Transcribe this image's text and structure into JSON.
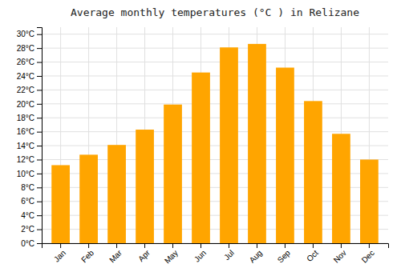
{
  "chart_data": {
    "type": "bar",
    "title": "Average monthly temperatures (°C ) in Relizane",
    "categories": [
      "Jan",
      "Feb",
      "Mar",
      "Apr",
      "May",
      "Jun",
      "Jul",
      "Aug",
      "Sep",
      "Oct",
      "Nov",
      "Dec"
    ],
    "values": [
      11.2,
      12.7,
      14.1,
      16.3,
      19.9,
      24.5,
      28.1,
      28.6,
      25.2,
      20.4,
      15.7,
      12.0
    ],
    "color": "#FFA500",
    "ylim": [
      0,
      31
    ],
    "yticks": [
      {
        "value": 0,
        "label": "0°C"
      },
      {
        "value": 2,
        "label": "2°C"
      },
      {
        "value": 4,
        "label": "4°C"
      },
      {
        "value": 6,
        "label": "6°C"
      },
      {
        "value": 8,
        "label": "8°C"
      },
      {
        "value": 10,
        "label": "10°C"
      },
      {
        "value": 12,
        "label": "12°C"
      },
      {
        "value": 14,
        "label": "14°C"
      },
      {
        "value": 16,
        "label": "16°C"
      },
      {
        "value": 18,
        "label": "18°C"
      },
      {
        "value": 20,
        "label": "20°C"
      },
      {
        "value": 22,
        "label": "22°C"
      },
      {
        "value": 24,
        "label": "24°C"
      },
      {
        "value": 26,
        "label": "26°C"
      },
      {
        "value": 28,
        "label": "28°C"
      },
      {
        "value": 30,
        "label": "30°C"
      }
    ],
    "grid": true
  }
}
